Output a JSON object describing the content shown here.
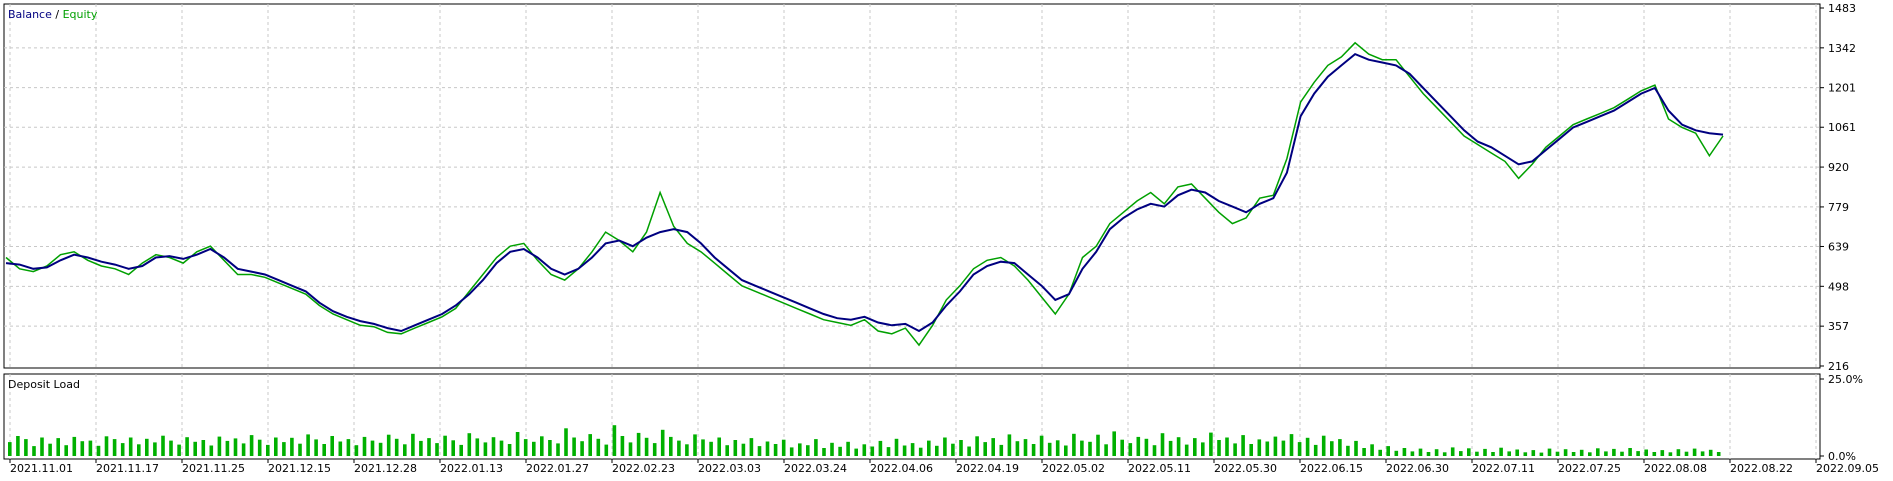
{
  "chart_data": [
    {
      "type": "line",
      "legend": [
        {
          "name": "Balance",
          "color": "#000080"
        },
        {
          "name": "Equity",
          "color": "#00a000"
        }
      ],
      "legend_separator": " / ",
      "y_ticks": [
        216,
        357,
        498,
        639,
        779,
        920,
        1061,
        1201,
        1342,
        1483
      ],
      "ylim": [
        216,
        1483
      ],
      "x_ticks": [
        "2021.11.01",
        "2021.11.17",
        "2021.11.25",
        "2021.12.15",
        "2021.12.28",
        "2022.01.13",
        "2022.01.27",
        "2022.02.23",
        "2022.03.03",
        "2022.03.24",
        "2022.04.06",
        "2022.04.19",
        "2022.05.02",
        "2022.05.11",
        "2022.05.30",
        "2022.06.15",
        "2022.06.30",
        "2022.07.11",
        "2022.07.25",
        "2022.08.08",
        "2022.08.22",
        "2022.09.05"
      ],
      "grid": true,
      "series": [
        {
          "name": "Balance",
          "color": "#000080",
          "values": [
            580,
            575,
            560,
            565,
            590,
            610,
            600,
            585,
            575,
            560,
            570,
            600,
            605,
            595,
            610,
            630,
            600,
            560,
            550,
            540,
            520,
            500,
            480,
            440,
            410,
            390,
            375,
            365,
            350,
            340,
            360,
            380,
            400,
            430,
            470,
            520,
            580,
            620,
            630,
            600,
            560,
            540,
            560,
            600,
            650,
            660,
            640,
            670,
            690,
            700,
            690,
            650,
            600,
            560,
            520,
            500,
            480,
            460,
            440,
            420,
            400,
            385,
            380,
            390,
            370,
            360,
            365,
            340,
            370,
            430,
            480,
            540,
            570,
            585,
            580,
            540,
            500,
            450,
            470,
            560,
            620,
            700,
            740,
            770,
            790,
            780,
            820,
            840,
            830,
            800,
            780,
            760,
            790,
            810,
            900,
            1100,
            1180,
            1240,
            1280,
            1320,
            1300,
            1290,
            1280,
            1250,
            1200,
            1150,
            1100,
            1050,
            1010,
            990,
            960,
            930,
            940,
            980,
            1020,
            1060,
            1080,
            1100,
            1120,
            1150,
            1180,
            1200,
            1120,
            1070,
            1050,
            1040,
            1035
          ]
        },
        {
          "name": "Equity",
          "color": "#00a000",
          "values": [
            600,
            560,
            550,
            570,
            610,
            620,
            590,
            570,
            560,
            540,
            580,
            610,
            600,
            580,
            620,
            640,
            590,
            540,
            540,
            530,
            510,
            490,
            470,
            430,
            400,
            380,
            360,
            355,
            335,
            330,
            350,
            370,
            390,
            420,
            480,
            540,
            600,
            640,
            650,
            590,
            540,
            520,
            560,
            620,
            690,
            660,
            620,
            690,
            830,
            710,
            650,
            620,
            580,
            540,
            500,
            480,
            460,
            440,
            420,
            400,
            380,
            370,
            360,
            380,
            340,
            330,
            350,
            290,
            360,
            450,
            500,
            560,
            590,
            600,
            570,
            520,
            460,
            400,
            470,
            600,
            640,
            720,
            760,
            800,
            830,
            790,
            850,
            860,
            810,
            760,
            720,
            740,
            810,
            820,
            950,
            1150,
            1220,
            1280,
            1310,
            1360,
            1320,
            1300,
            1300,
            1240,
            1180,
            1130,
            1080,
            1030,
            1000,
            970,
            940,
            880,
            930,
            990,
            1030,
            1070,
            1090,
            1110,
            1130,
            1160,
            1190,
            1210,
            1090,
            1060,
            1040,
            960,
            1030
          ]
        }
      ]
    },
    {
      "type": "bar",
      "title": "Deposit Load",
      "y_ticks": [
        "25.0%",
        "0.0%"
      ],
      "ylim": [
        0,
        25
      ],
      "color": "#00b000",
      "values": [
        4.5,
        6.5,
        5.5,
        3.2,
        6.0,
        4.0,
        5.8,
        3.5,
        6.2,
        4.8,
        5.0,
        3.3,
        6.4,
        5.5,
        4.2,
        6.0,
        3.8,
        5.6,
        4.4,
        6.6,
        5.0,
        3.7,
        6.1,
        4.6,
        5.2,
        3.4,
        6.3,
        4.9,
        5.7,
        4.1,
        6.8,
        5.3,
        3.6,
        6.0,
        4.5,
        5.9,
        4.0,
        7.0,
        5.4,
        3.9,
        6.5,
        4.7,
        5.5,
        3.5,
        6.2,
        5.0,
        4.3,
        6.9,
        5.6,
        3.8,
        7.2,
        4.9,
        5.8,
        4.2,
        6.6,
        5.1,
        3.6,
        7.4,
        5.7,
        4.4,
        6.1,
        5.0,
        3.9,
        7.8,
        5.5,
        4.6,
        6.4,
        5.2,
        4.1,
        9.0,
        6.0,
        4.8,
        7.1,
        5.6,
        3.7,
        10.0,
        6.5,
        4.4,
        7.5,
        5.9,
        4.2,
        8.5,
        6.2,
        5.0,
        3.8,
        7.0,
        5.4,
        4.6,
        6.0,
        3.5,
        5.2,
        4.0,
        5.8,
        3.2,
        4.7,
        3.9,
        5.3,
        2.8,
        4.1,
        3.5,
        5.5,
        2.6,
        4.3,
        3.0,
        4.6,
        2.4,
        3.8,
        3.1,
        4.9,
        2.9,
        5.6,
        3.4,
        4.2,
        2.7,
        5.0,
        3.3,
        6.0,
        4.0,
        5.2,
        3.1,
        6.4,
        4.5,
        5.8,
        3.6,
        7.0,
        4.8,
        5.5,
        3.9,
        6.6,
        4.3,
        5.1,
        3.4,
        7.2,
        5.0,
        4.6,
        6.9,
        3.8,
        8.0,
        5.3,
        4.2,
        6.2,
        5.6,
        3.5,
        7.4,
        4.9,
        6.1,
        3.7,
        5.8,
        4.4,
        7.6,
        5.2,
        6.0,
        4.1,
        6.8,
        3.9,
        5.4,
        4.7,
        6.3,
        5.0,
        7.1,
        4.5,
        5.9,
        3.6,
        6.6,
        4.8,
        5.5,
        3.3,
        4.9,
        2.6,
        3.8,
        2.0,
        3.2,
        1.7,
        2.6,
        1.5,
        2.4,
        1.3,
        2.2,
        1.2,
        2.8,
        1.6,
        2.5,
        1.4,
        2.3,
        1.3,
        2.7,
        1.5,
        2.1,
        1.2,
        1.9,
        1.1,
        2.4,
        1.4,
        2.2,
        1.3,
        2.0,
        1.2,
        2.5,
        1.5,
        2.3,
        1.4,
        2.6,
        1.6,
        2.1,
        1.3,
        1.9,
        1.2,
        2.2,
        1.4,
        2.4,
        1.5,
        2.0,
        1.3
      ]
    }
  ]
}
